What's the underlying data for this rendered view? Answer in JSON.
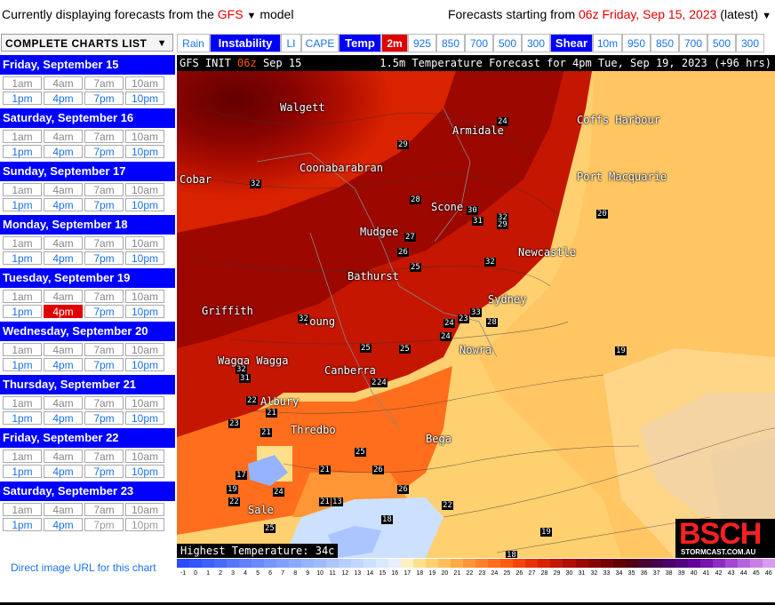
{
  "topbar": {
    "left_prefix": "Currently displaying forecasts from the ",
    "model": "GFS",
    "left_suffix": " model",
    "right_prefix": "Forecasts starting from ",
    "run": "06z Friday, Sep 15, 2023",
    "right_suffix": " (latest)"
  },
  "sidebar": {
    "header": "COMPLETE CHARTS LIST",
    "days": [
      {
        "title": "Friday, September 15",
        "am": [
          "1am",
          "4am",
          "7am",
          "10am"
        ],
        "pm": [
          "1pm",
          "4pm",
          "7pm",
          "10pm"
        ]
      },
      {
        "title": "Saturday, September 16",
        "am": [
          "1am",
          "4am",
          "7am",
          "10am"
        ],
        "pm": [
          "1pm",
          "4pm",
          "7pm",
          "10pm"
        ]
      },
      {
        "title": "Sunday, September 17",
        "am": [
          "1am",
          "4am",
          "7am",
          "10am"
        ],
        "pm": [
          "1pm",
          "4pm",
          "7pm",
          "10pm"
        ]
      },
      {
        "title": "Monday, September 18",
        "am": [
          "1am",
          "4am",
          "7am",
          "10am"
        ],
        "pm": [
          "1pm",
          "4pm",
          "7pm",
          "10pm"
        ]
      },
      {
        "title": "Tuesday, September 19",
        "am": [
          "1am",
          "4am",
          "7am",
          "10am"
        ],
        "pm": [
          "1pm",
          "4pm",
          "7pm",
          "10pm"
        ]
      },
      {
        "title": "Wednesday, September 20",
        "am": [
          "1am",
          "4am",
          "7am",
          "10am"
        ],
        "pm": [
          "1pm",
          "4pm",
          "7pm",
          "10pm"
        ]
      },
      {
        "title": "Thursday, September 21",
        "am": [
          "1am",
          "4am",
          "7am",
          "10am"
        ],
        "pm": [
          "1pm",
          "4pm",
          "7pm",
          "10pm"
        ]
      },
      {
        "title": "Friday, September 22",
        "am": [
          "1am",
          "4am",
          "7am",
          "10am"
        ],
        "pm": [
          "1pm",
          "4pm",
          "7pm",
          "10pm"
        ]
      },
      {
        "title": "Saturday, September 23",
        "am": [
          "1am",
          "4am",
          "7am",
          "10am"
        ],
        "pm": [
          "1pm",
          "4pm",
          "7pm",
          "10pm"
        ]
      }
    ],
    "direct_link": "Direct image URL for this chart"
  },
  "tabs": [
    {
      "label": "Rain",
      "style": "link"
    },
    {
      "label": "Instability",
      "style": "blue"
    },
    {
      "label": "LI",
      "style": "link"
    },
    {
      "label": "CAPE",
      "style": "link"
    },
    {
      "label": "Temp",
      "style": "blue"
    },
    {
      "label": "2m",
      "style": "red"
    },
    {
      "label": "925",
      "style": "link"
    },
    {
      "label": "850",
      "style": "link"
    },
    {
      "label": "700",
      "style": "link"
    },
    {
      "label": "500",
      "style": "link"
    },
    {
      "label": "300",
      "style": "link"
    },
    {
      "label": "Shear",
      "style": "blue"
    },
    {
      "label": "10m",
      "style": "link"
    },
    {
      "label": "950",
      "style": "link"
    },
    {
      "label": "850",
      "style": "link"
    },
    {
      "label": "700",
      "style": "link"
    },
    {
      "label": "500",
      "style": "link"
    },
    {
      "label": "300",
      "style": "link"
    }
  ],
  "map": {
    "head_left_prefix": "GFS INIT ",
    "head_left_run": "06z",
    "head_left_suffix": " Sep 15",
    "head_right": "1.5m Temperature Forecast for 4pm Tue, Sep 19, 2023 (+96 hrs)",
    "places": [
      "Walgett",
      "Armidale",
      "Coffs Harbour",
      "Coonabarabran",
      "Port Macquarie",
      "Cobar",
      "Scone",
      "Mudgee",
      "Newcastle",
      "Bathurst",
      "Sydney",
      "Griffith",
      "Young",
      "Nowra",
      "Wagga Wagga",
      "Canberra",
      "Albury",
      "Thredbo",
      "Bega",
      "Sale"
    ],
    "values": [
      "24",
      "29",
      "32",
      "28",
      "30",
      "31",
      "20",
      "32",
      "27",
      "26",
      "29",
      "32",
      "25",
      "33",
      "32",
      "23",
      "24",
      "28",
      "25",
      "19",
      "25",
      "24",
      "32",
      "31",
      "26",
      "24",
      "22",
      "23",
      "21",
      "21",
      "25",
      "26",
      "17",
      "24",
      "26",
      "21",
      "19",
      "22",
      "25",
      "22",
      "18",
      "18",
      "21",
      "13",
      "19"
    ],
    "highest": "Highest Temperature: 34c",
    "logo_main": "BSCH",
    "logo_sub": "STORMCAST.COM.AU"
  },
  "scale": {
    "labels": [
      "-1",
      "0",
      "1",
      "2",
      "3",
      "4",
      "5",
      "6",
      "7",
      "8",
      "9",
      "10",
      "11",
      "12",
      "13",
      "14",
      "15",
      "16",
      "17",
      "18",
      "19",
      "20",
      "21",
      "22",
      "23",
      "24",
      "25",
      "26",
      "27",
      "28",
      "29",
      "30",
      "31",
      "32",
      "33",
      "34",
      "35",
      "36",
      "37",
      "38",
      "39",
      "40",
      "41",
      "42",
      "43",
      "44",
      "45",
      "46"
    ],
    "colors": [
      "#2a4bff",
      "#3355ff",
      "#3d60ff",
      "#486bff",
      "#5577ff",
      "#6080ff",
      "#6a8aff",
      "#7595ff",
      "#80a0ff",
      "#8aaaff",
      "#95b3ff",
      "#a0bbff",
      "#aac5ff",
      "#b5ceff",
      "#c0d7ff",
      "#cce0ff",
      "#d9e8ff",
      "#e8f0ff",
      "#fff1c0",
      "#ffe08a",
      "#ffd070",
      "#ffbe5a",
      "#ffaa45",
      "#ff9635",
      "#ff8228",
      "#ff6e1c",
      "#ff5a12",
      "#f5450a",
      "#e83205",
      "#d82200",
      "#c41600",
      "#b00e00",
      "#9c0800",
      "#880400",
      "#760200",
      "#620000",
      "#520010",
      "#4a0030",
      "#46004a",
      "#4a0066",
      "#560080",
      "#66009a",
      "#7a12b0",
      "#8e2cc2",
      "#a248d2",
      "#b664de",
      "#c880e8",
      "#d89cf0"
    ]
  }
}
